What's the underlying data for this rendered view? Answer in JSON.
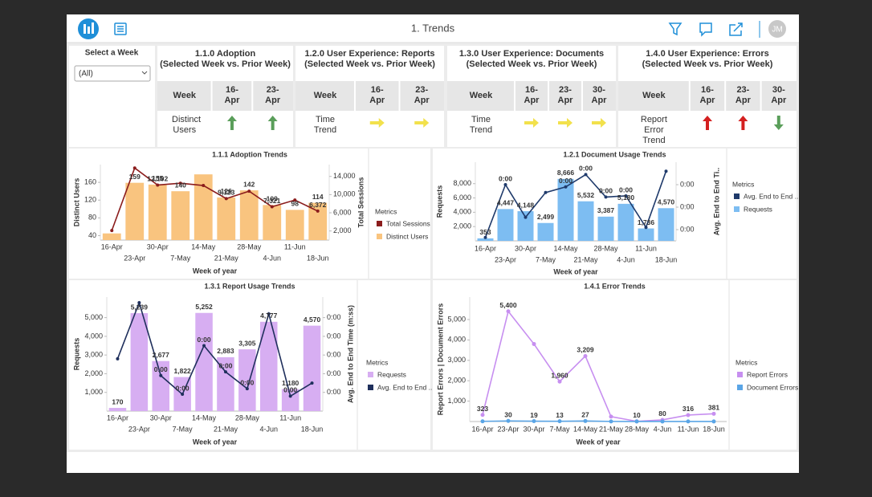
{
  "header": {
    "title": "1. Trends",
    "avatar": "JM"
  },
  "filter": {
    "label": "Select a Week",
    "value": "(All)"
  },
  "kpis": [
    {
      "title": "1.1.0 Adoption",
      "subtitle": "(Selected Week vs. Prior Week)",
      "columns": [
        "Week",
        "16-Apr",
        "23-Apr"
      ],
      "row_label": "Distinct Users",
      "arrows": [
        {
          "direction": "up",
          "color": "#5a9e5a"
        },
        {
          "direction": "up",
          "color": "#5a9e5a"
        }
      ]
    },
    {
      "title": "1.2.0 User Experience: Reports",
      "subtitle": "(Selected Week vs. Prior Week)",
      "columns": [
        "Week",
        "16-Apr",
        "23-Apr"
      ],
      "row_label": "Time Trend",
      "arrows": [
        {
          "direction": "right",
          "color": "#f2e14c"
        },
        {
          "direction": "right",
          "color": "#f2e14c"
        }
      ]
    },
    {
      "title": "1.3.0 User Experience: Documents",
      "subtitle": "(Selected Week vs. Prior Week)",
      "columns": [
        "Week",
        "16-Apr",
        "23-Apr",
        "30-Apr"
      ],
      "row_label": "Time Trend",
      "arrows": [
        {
          "direction": "right",
          "color": "#f2e14c"
        },
        {
          "direction": "right",
          "color": "#f2e14c"
        },
        {
          "direction": "right",
          "color": "#f2e14c"
        }
      ]
    },
    {
      "title": "1.4.0 User Experience: Errors",
      "subtitle": "(Selected Week vs. Prior Week)",
      "columns": [
        "Week",
        "16-Apr",
        "23-Apr",
        "30-Apr"
      ],
      "row_label": "Report Error Trend",
      "arrows": [
        {
          "direction": "up",
          "color": "#d42020"
        },
        {
          "direction": "up",
          "color": "#d42020"
        },
        {
          "direction": "down",
          "color": "#5a9e5a"
        }
      ]
    }
  ],
  "chart_data": [
    {
      "type": "combo",
      "title": "1.1.1 Adoption Trends",
      "categories": [
        "16-Apr",
        "23-Apr",
        "30-Apr",
        "7-May",
        "14-May",
        "21-May",
        "28-May",
        "4-Jun",
        "11-Jun",
        "18-Jun"
      ],
      "xlabel": "Week of year",
      "ylabel": "Distinct Users",
      "y2label": "Total Sessions",
      "ylim": [
        30,
        200
      ],
      "yticks": [
        40,
        80,
        120,
        160
      ],
      "y2lim": [
        0,
        16600
      ],
      "y2ticks": [
        {
          "value": 2000,
          "label": "2,000"
        },
        {
          "value": 6000,
          "label": "6,000"
        },
        {
          "value": 10000,
          "label": "10,000"
        },
        {
          "value": 14000,
          "label": "14,000"
        }
      ],
      "legend_title": "Metrics",
      "series": [
        {
          "name": "Total Sessions",
          "type": "line",
          "axis": "y2",
          "color": "#8b1c1c",
          "values": [
            2100,
            15860,
            12102,
            12500,
            12000,
            9123,
            10750,
            7321,
            8800,
            6372
          ],
          "value_labels": [
            null,
            null,
            "12,102",
            null,
            null,
            "9,123",
            null,
            "7,321",
            null,
            "6,372"
          ]
        },
        {
          "name": "Distinct Users",
          "type": "bar",
          "color": "#f9c47f",
          "values": [
            45,
            159,
            155,
            140,
            178,
            126,
            142,
            109,
            98,
            114
          ],
          "value_labels": [
            null,
            "159",
            "155",
            "140",
            null,
            "126",
            "142",
            "109",
            "98",
            "114"
          ]
        }
      ]
    },
    {
      "type": "combo",
      "title": "1.2.1 Document Usage Trends",
      "categories": [
        "16-Apr",
        "23-Apr",
        "30-Apr",
        "7-May",
        "14-May",
        "21-May",
        "28-May",
        "4-Jun",
        "11-Jun",
        "18-Jun"
      ],
      "xlabel": "Week of year",
      "ylabel": "Requests",
      "y2label": "Avg. End to End Ti..",
      "ylim": [
        0,
        11000
      ],
      "yticks": [
        {
          "value": 2000,
          "label": "2,000"
        },
        {
          "value": 4000,
          "label": "4,000"
        },
        {
          "value": 6000,
          "label": "6,000"
        },
        {
          "value": 8000,
          "label": "8,000"
        }
      ],
      "y2lim": [
        0.1,
        0.8
      ],
      "y2ticks": [
        {
          "value": 0.2,
          "label": "0:00"
        },
        {
          "value": 0.4,
          "label": "0:00"
        },
        {
          "value": 0.6,
          "label": "0:00"
        }
      ],
      "legend_title": "Metrics",
      "series": [
        {
          "name": "Avg. End to End ..",
          "type": "line",
          "axis": "y2",
          "color": "#1f3a6b",
          "values": [
            0.13,
            0.6,
            0.31,
            0.53,
            0.58,
            0.69,
            0.49,
            0.5,
            0.22,
            0.72
          ],
          "value_labels": [
            null,
            "0:00",
            null,
            null,
            "0:00",
            "0:00",
            "0:00",
            "0:00",
            null,
            null
          ]
        },
        {
          "name": "Requests",
          "type": "bar",
          "color": "#7dbdf2",
          "values": [
            353,
            4447,
            4148,
            2499,
            8666,
            5532,
            3387,
            5180,
            1736,
            4570
          ],
          "value_labels": [
            "353",
            "4,447",
            "4,148",
            "2,499",
            "8,666",
            "5,532",
            "3,387",
            "5,180",
            "1,736",
            "4,570"
          ]
        }
      ]
    },
    {
      "type": "combo",
      "title": "1.3.1 Report Usage Trends",
      "categories": [
        "16-Apr",
        "23-Apr",
        "30-Apr",
        "7-May",
        "14-May",
        "21-May",
        "28-May",
        "4-Jun",
        "11-Jun",
        "18-Jun"
      ],
      "xlabel": "Week of year",
      "ylabel": "Requests",
      "y2label": "Avg. End to End Time (m:ss)",
      "ylim": [
        0,
        6100
      ],
      "yticks": [
        {
          "value": 1000,
          "label": "1,000"
        },
        {
          "value": 2000,
          "label": "2,000"
        },
        {
          "value": 3000,
          "label": "3,000"
        },
        {
          "value": 4000,
          "label": "4,000"
        },
        {
          "value": 5000,
          "label": "5,000"
        }
      ],
      "y2lim": [
        0,
        0.61
      ],
      "y2ticks": [
        {
          "value": 0.1,
          "label": "0:00"
        },
        {
          "value": 0.2,
          "label": "0:00"
        },
        {
          "value": 0.3,
          "label": "0:00"
        },
        {
          "value": 0.4,
          "label": "0:00"
        },
        {
          "value": 0.5,
          "label": "0:00"
        }
      ],
      "legend_title": "Metrics",
      "series": [
        {
          "name": "Requests",
          "type": "bar",
          "color": "#d7aef2",
          "values": [
            170,
            5239,
            2677,
            1822,
            5252,
            2883,
            3305,
            4777,
            1180,
            4570
          ],
          "value_labels": [
            "170",
            "5,239",
            "2,677",
            "1,822",
            "5,252",
            "2,883",
            "3,305",
            "4,777",
            "1,180",
            "4,570"
          ]
        },
        {
          "name": "Avg. End to End ..",
          "type": "line",
          "axis": "y2",
          "color": "#1f2f5c",
          "values": [
            0.28,
            0.58,
            0.19,
            0.09,
            0.35,
            0.21,
            0.12,
            0.52,
            0.08,
            0.15
          ],
          "value_labels": [
            null,
            null,
            "0:00",
            "0:00",
            "0:00",
            "0:00",
            "0:00",
            null,
            "0:00",
            null
          ]
        }
      ]
    },
    {
      "type": "line",
      "title": "1.4.1 Error Trends",
      "categories": [
        "16-Apr",
        "23-Apr",
        "30-Apr",
        "7-May",
        "14-May",
        "21-May",
        "28-May",
        "4-Jun",
        "11-Jun",
        "18-Jun"
      ],
      "xlabel": "Week of year",
      "ylabel": "Report Errors  |  Document Errors",
      "ylim": [
        0,
        6100
      ],
      "yticks": [
        {
          "value": 1000,
          "label": "1,000"
        },
        {
          "value": 2000,
          "label": "2,000"
        },
        {
          "value": 3000,
          "label": "3,000"
        },
        {
          "value": 4000,
          "label": "4,000"
        },
        {
          "value": 5000,
          "label": "5,000"
        }
      ],
      "legend_title": "Metrics",
      "series": [
        {
          "name": "Report Errors",
          "type": "line",
          "color": "#c78ff0",
          "values": [
            323,
            5400,
            3800,
            1960,
            3209,
            240,
            10,
            80,
            316,
            381
          ],
          "value_labels": [
            "323",
            "5,400",
            null,
            "1,960",
            "3,209",
            null,
            "10",
            "80",
            "316",
            "381"
          ]
        },
        {
          "name": "Document Errors",
          "type": "line",
          "color": "#5aa5e6",
          "values": [
            10,
            30,
            19,
            13,
            27,
            5,
            3,
            2,
            4,
            3
          ],
          "value_labels": [
            null,
            "30",
            "19",
            "13",
            "27",
            null,
            null,
            null,
            null,
            null
          ]
        }
      ]
    }
  ]
}
